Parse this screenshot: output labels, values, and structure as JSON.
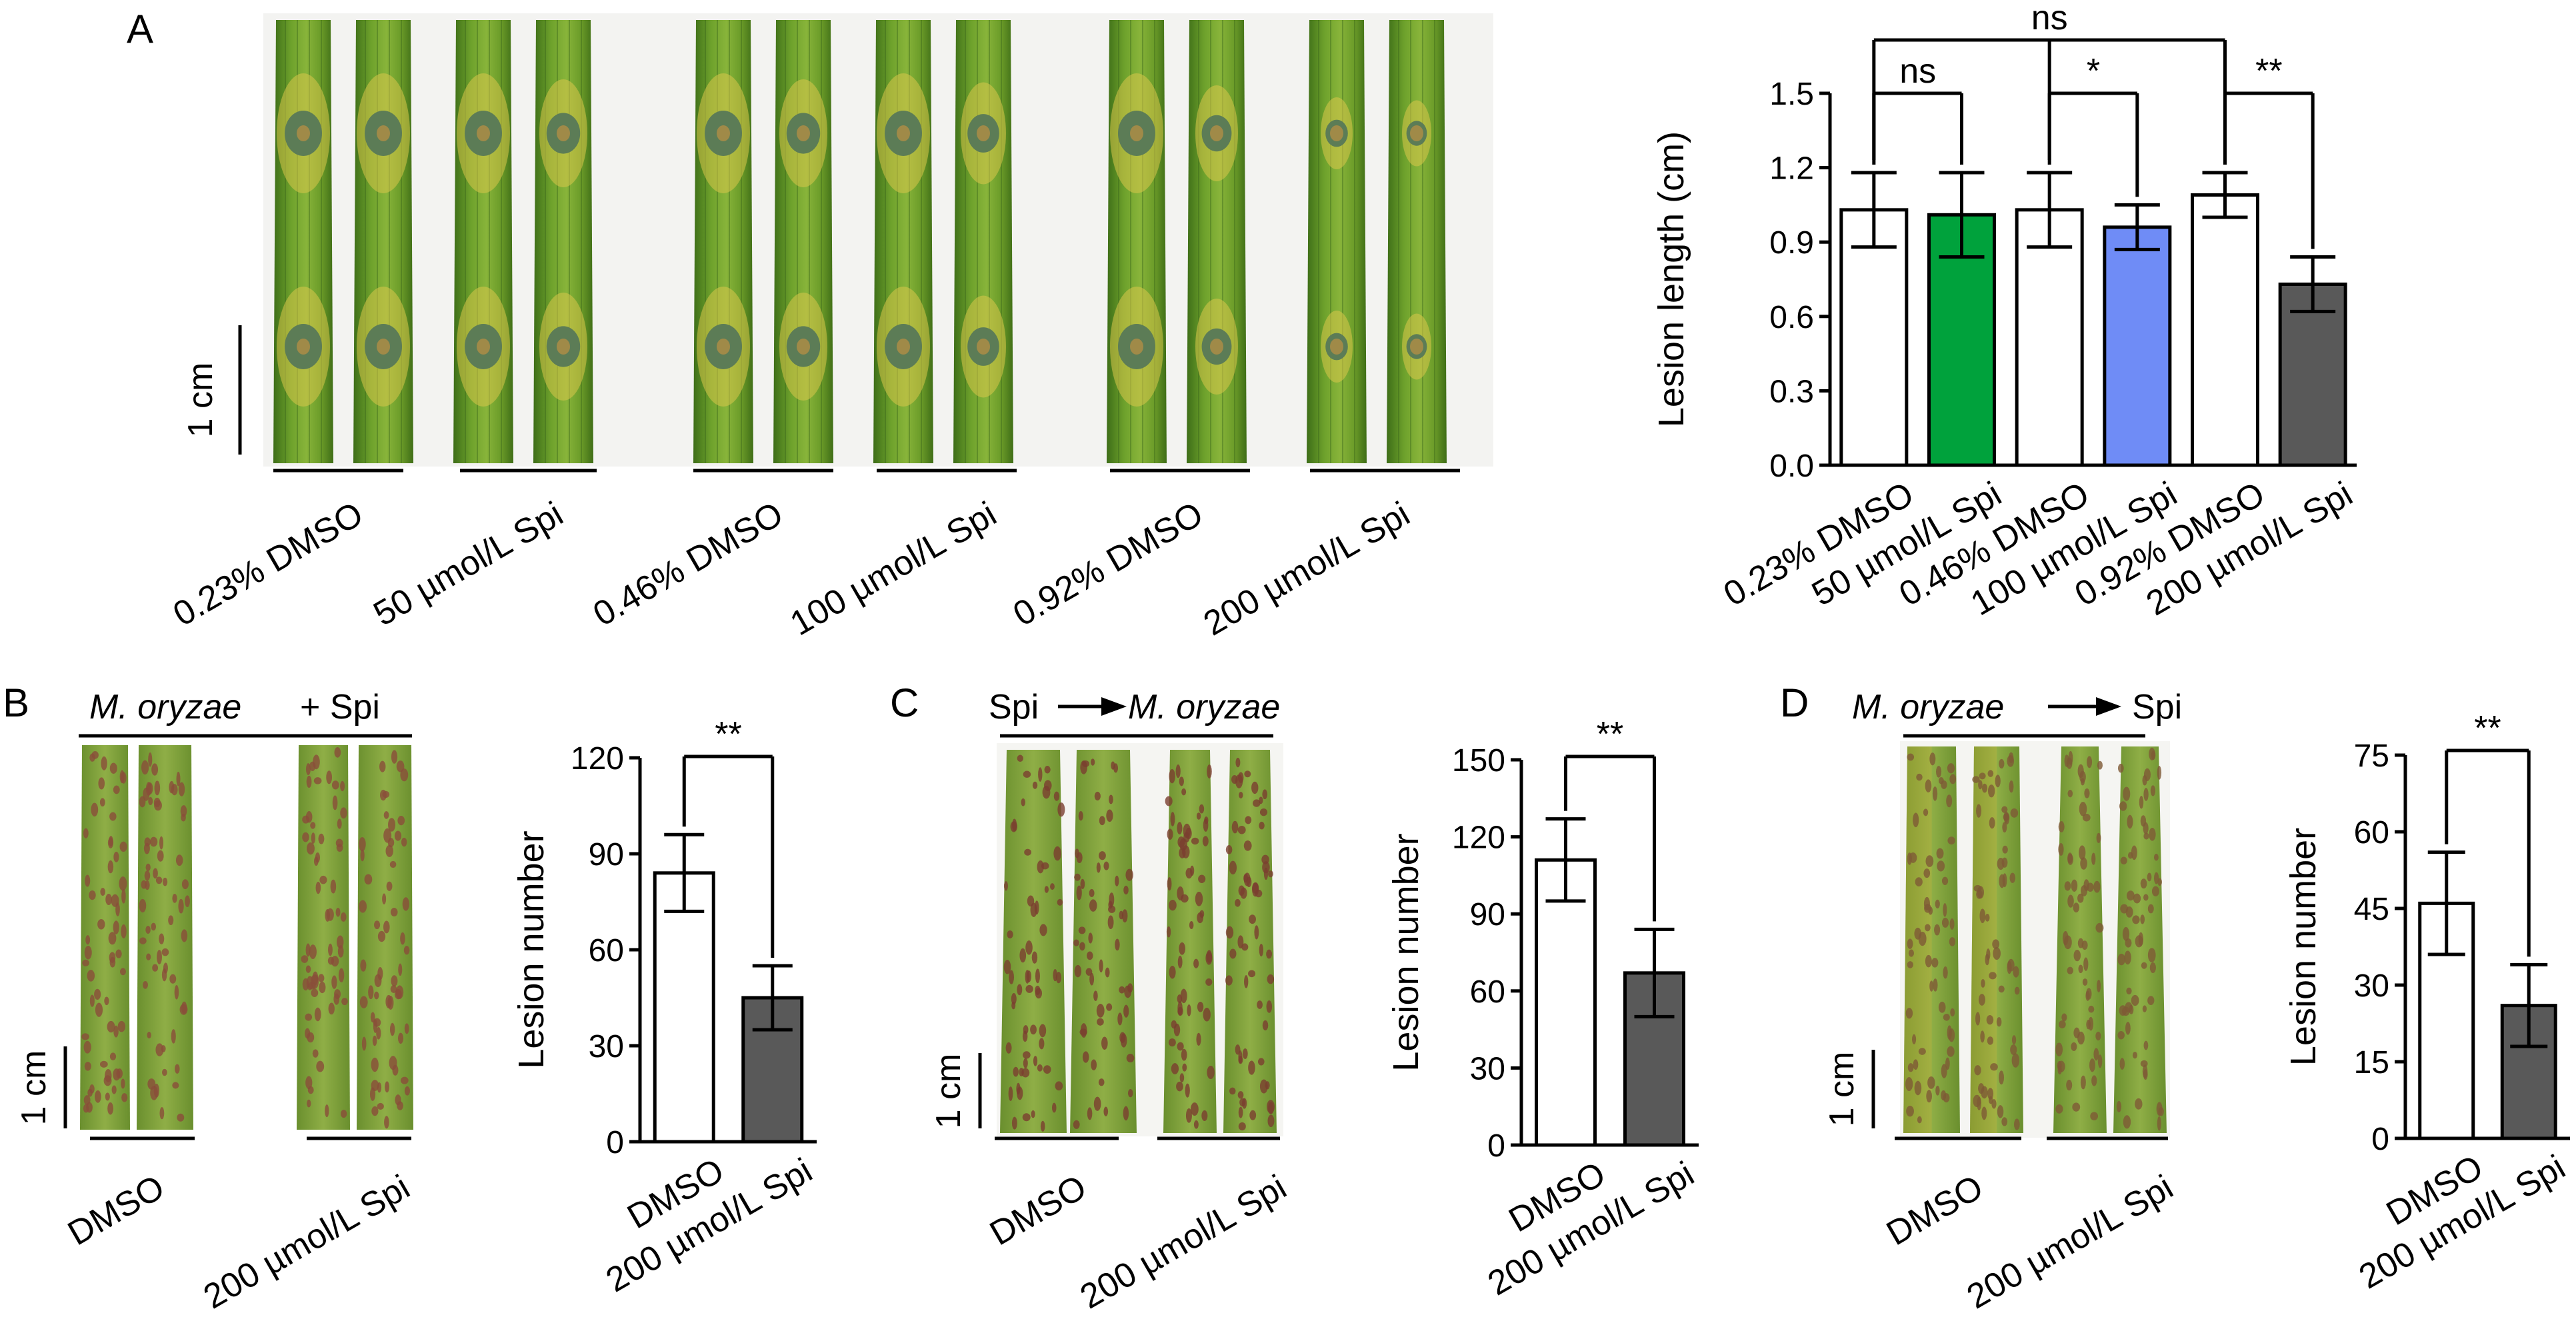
{
  "panels": {
    "A": {
      "label": "A",
      "scale_bar": "1 cm",
      "leaf_groups": [
        "0.23% DMSO",
        "50 µmol/L Spi",
        "0.46% DMSO",
        "100 µmol/L Spi",
        "0.92% DMSO",
        "200 µmol/L Spi"
      ]
    },
    "B": {
      "label": "B",
      "scale_bar": "1 cm",
      "header_a": "M. oryzae",
      "header_b": "+ Spi",
      "leaf_groups": [
        "DMSO",
        "200 µmol/L Spi"
      ]
    },
    "C": {
      "label": "C",
      "scale_bar": "1 cm",
      "header_a": "Spi",
      "header_b": "M. oryzae",
      "leaf_groups": [
        "DMSO",
        "200 µmol/L Spi"
      ]
    },
    "D": {
      "label": "D",
      "scale_bar": "1 cm",
      "header_a": "M. oryzae",
      "header_b": "Spi",
      "leaf_groups": [
        "DMSO",
        "200 µmol/L Spi"
      ]
    }
  },
  "colors": {
    "white_bar": "#ffffff",
    "green_bar": "#00a23c",
    "blue_bar": "#6f8cf6",
    "gray_bar": "#595959",
    "leaf_green": "#6b9a2a",
    "leaf_dark": "#3f6b16",
    "lesion": "#8a5a3a"
  },
  "chart_data": [
    {
      "id": "A",
      "type": "bar",
      "categories": [
        "0.23% DMSO",
        "50 µmol/L Spi",
        "0.46% DMSO",
        "100 µmol/L Spi",
        "0.92% DMSO",
        "200 µmol/L Spi"
      ],
      "values": [
        1.03,
        1.01,
        1.03,
        0.96,
        1.09,
        0.73
      ],
      "errors": [
        0.15,
        0.17,
        0.15,
        0.09,
        0.09,
        0.11
      ],
      "bar_colors": [
        "#ffffff",
        "#00a23c",
        "#ffffff",
        "#6f8cf6",
        "#ffffff",
        "#595959"
      ],
      "ylabel": "Lesion length (cm)",
      "ylim": [
        0,
        1.5
      ],
      "yticks": [
        "0.0",
        "0.3",
        "0.6",
        "0.9",
        "1.2",
        "1.5"
      ],
      "significance": [
        {
          "from": 0,
          "to": 1,
          "label": "ns"
        },
        {
          "from": 2,
          "to": 3,
          "label": "*"
        },
        {
          "from": 4,
          "to": 5,
          "label": "**"
        },
        {
          "from": 0,
          "to": 4,
          "label": "ns",
          "via": 2
        }
      ]
    },
    {
      "id": "B",
      "type": "bar",
      "categories": [
        "DMSO",
        "200 µmol/L Spi"
      ],
      "values": [
        84,
        45
      ],
      "errors": [
        12,
        10
      ],
      "bar_colors": [
        "#ffffff",
        "#595959"
      ],
      "ylabel": "Lesion number",
      "ylim": [
        0,
        120
      ],
      "yticks": [
        "0",
        "30",
        "60",
        "90",
        "120"
      ],
      "significance": [
        {
          "from": 0,
          "to": 1,
          "label": "**"
        }
      ]
    },
    {
      "id": "C",
      "type": "bar",
      "categories": [
        "DMSO",
        "200 µmol/L Spi"
      ],
      "values": [
        111,
        67
      ],
      "errors": [
        16,
        17
      ],
      "bar_colors": [
        "#ffffff",
        "#595959"
      ],
      "ylabel": "Lesion number",
      "ylim": [
        0,
        150
      ],
      "yticks": [
        "0",
        "30",
        "60",
        "90",
        "120",
        "150"
      ],
      "significance": [
        {
          "from": 0,
          "to": 1,
          "label": "**"
        }
      ]
    },
    {
      "id": "D",
      "type": "bar",
      "categories": [
        "DMSO",
        "200 µmol/L Spi"
      ],
      "values": [
        46,
        26
      ],
      "errors": [
        10,
        8
      ],
      "bar_colors": [
        "#ffffff",
        "#595959"
      ],
      "ylabel": "Lesion number",
      "ylim": [
        0,
        75
      ],
      "yticks": [
        "0",
        "15",
        "30",
        "45",
        "60",
        "75"
      ],
      "significance": [
        {
          "from": 0,
          "to": 1,
          "label": "**"
        }
      ]
    }
  ]
}
